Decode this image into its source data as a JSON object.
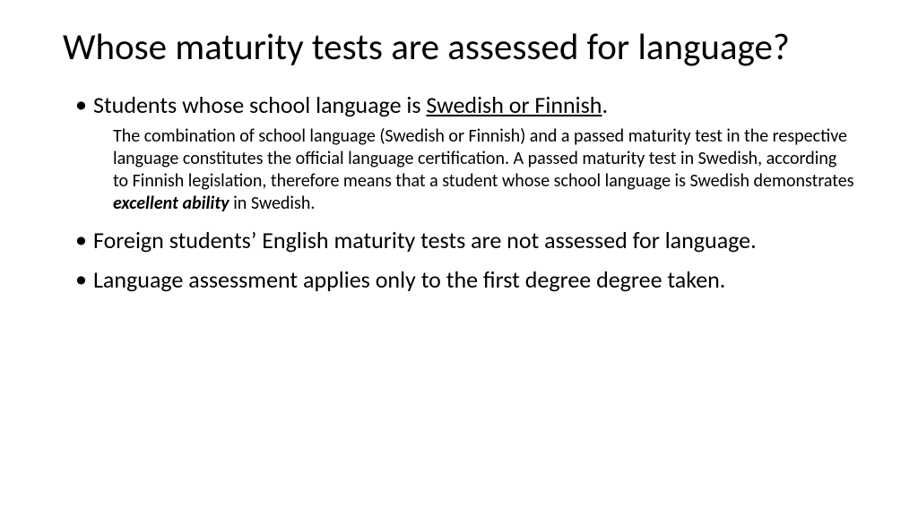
{
  "title": "Whose maturity tests are assessed for language?",
  "bullets": {
    "b1_pre": "Students whose school language is ",
    "b1_u": "Swedish or Finnish",
    "b1_post": ".",
    "sub_pre": "The combination of school language (Swedish or Finnish) and a passed maturity test in the respective language constitutes the official language certification. A passed maturity test in Swedish, according to Finnish legislation, therefore means that a student whose school language is Swedish demonstrates ",
    "sub_em": "excellent ability",
    "sub_post": " in Swedish.",
    "b2": "Foreign students’ English maturity tests are not assessed for language.",
    "b3": "Language assessment applies only to the first degree degree taken."
  },
  "style": {
    "background_color": "#ffffff",
    "text_color": "#000000",
    "title_fontsize": 41,
    "lead_fontsize": 26,
    "sub_fontsize": 20,
    "font_family": "Calibri"
  }
}
